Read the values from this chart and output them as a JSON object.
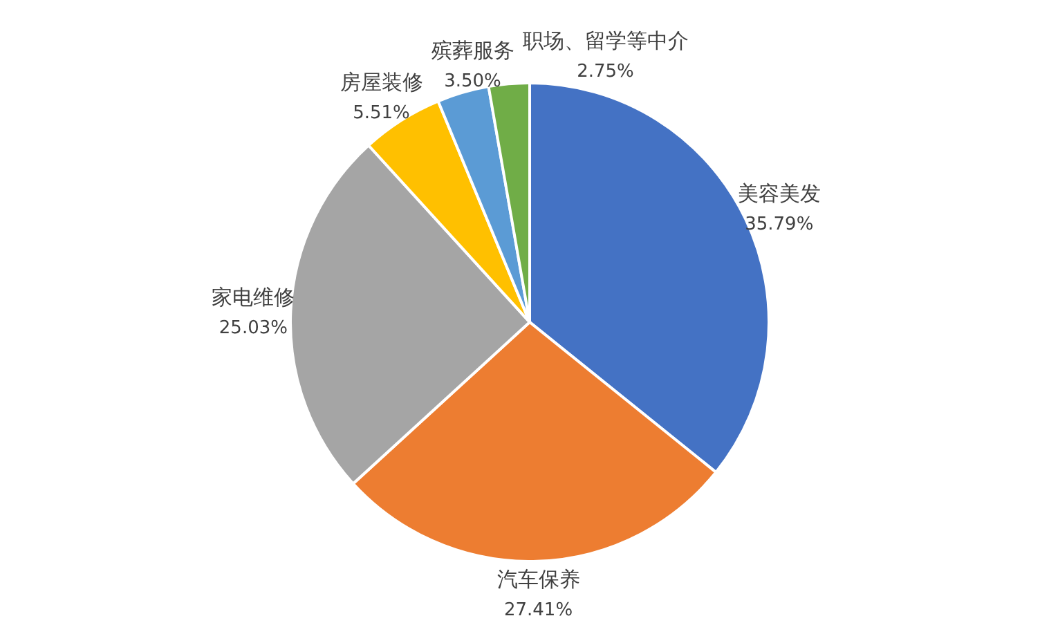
{
  "chart_data": {
    "type": "pie",
    "categories": [
      "美容美发",
      "汽车保养",
      "家电维修",
      "房屋装修",
      "殡葬服务",
      "职场、留学等中介"
    ],
    "values": [
      35.79,
      27.41,
      25.03,
      5.51,
      3.5,
      2.75
    ],
    "value_labels": [
      "35.79%",
      "27.41%",
      "25.03%",
      "5.51%",
      "3.50%",
      "2.75%"
    ],
    "colors": [
      "#4472c4",
      "#ed7d31",
      "#a5a5a5",
      "#ffc000",
      "#5b9bd5",
      "#70ad47"
    ]
  }
}
